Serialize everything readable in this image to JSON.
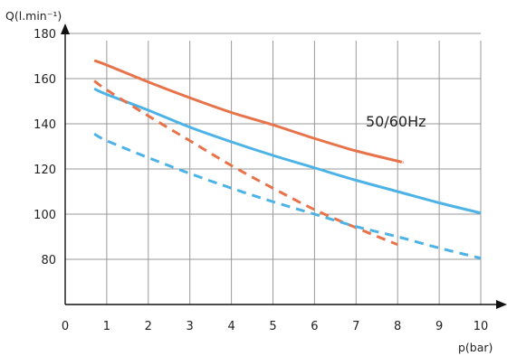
{
  "chart_data": {
    "type": "line",
    "title": "",
    "xlabel": "p(bar)",
    "ylabel": "Q(l.min⁻¹)",
    "xlim": [
      0,
      10
    ],
    "ylim": [
      60,
      180
    ],
    "x_ticks": [
      "0",
      "1",
      "2",
      "3",
      "4",
      "5",
      "6",
      "7",
      "8",
      "9",
      "10"
    ],
    "y_ticks": [
      "80",
      "100",
      "120",
      "140",
      "160",
      "180"
    ],
    "grid": true,
    "annotation": "50/60Hz",
    "series": [
      {
        "color": "#E8734A",
        "style": "solid",
        "x": [
          0.7,
          1,
          2,
          3,
          4,
          5,
          6,
          7,
          8,
          8.1
        ],
        "y": [
          168,
          166,
          158.5,
          151.5,
          145,
          139.5,
          133.5,
          128,
          123.5,
          123
        ]
      },
      {
        "color": "#4DB3E6",
        "style": "solid",
        "x": [
          0.7,
          1,
          2,
          3,
          4,
          5,
          6,
          7,
          8,
          9,
          10
        ],
        "y": [
          155.5,
          153,
          146,
          138.5,
          132,
          126,
          120.5,
          115,
          110,
          105,
          100.5
        ]
      },
      {
        "color": "#E8734A",
        "style": "dashed",
        "x": [
          0.7,
          1,
          2,
          3,
          4,
          5,
          6,
          7,
          8
        ],
        "y": [
          159,
          155,
          143.5,
          132.5,
          121.5,
          111.5,
          102,
          94,
          86.5
        ]
      },
      {
        "color": "#4DB3E6",
        "style": "dashed",
        "x": [
          0.7,
          1,
          2,
          3,
          4,
          5,
          6,
          7,
          8,
          9,
          10
        ],
        "y": [
          135.5,
          132.5,
          125,
          118,
          111.5,
          105.5,
          100,
          94.5,
          90,
          85,
          80.5
        ]
      }
    ]
  }
}
